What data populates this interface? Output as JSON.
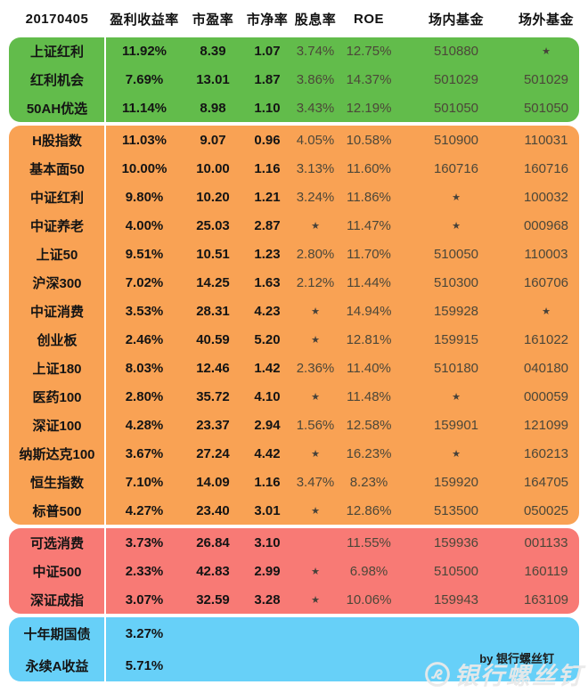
{
  "header": {
    "cells": [
      "20170405",
      "盈利收益率",
      "市盈率",
      "市净率",
      "股息率",
      "ROE",
      "场内基金",
      "场外基金"
    ]
  },
  "chart_data": {
    "type": "table",
    "title": "20170405",
    "columns": [
      "20170405",
      "盈利收益率",
      "市盈率",
      "市净率",
      "股息率",
      "ROE",
      "场内基金",
      "场外基金"
    ],
    "star_symbol": "★",
    "groups": [
      {
        "id": "green",
        "color": "#62BC4B",
        "rows": [
          [
            "上证红利",
            "11.92%",
            "8.39",
            "1.07",
            "3.74%",
            "12.75%",
            "510880",
            "★"
          ],
          [
            "红利机会",
            "7.69%",
            "13.01",
            "1.87",
            "3.86%",
            "14.37%",
            "501029",
            "501029"
          ],
          [
            "50AH优选",
            "11.14%",
            "8.98",
            "1.10",
            "3.43%",
            "12.19%",
            "501050",
            "501050"
          ]
        ]
      },
      {
        "id": "orange",
        "color": "#F9A254",
        "rows": [
          [
            "H股指数",
            "11.03%",
            "9.07",
            "0.96",
            "4.05%",
            "10.58%",
            "510900",
            "110031"
          ],
          [
            "基本面50",
            "10.00%",
            "10.00",
            "1.16",
            "3.13%",
            "11.60%",
            "160716",
            "160716"
          ],
          [
            "中证红利",
            "9.80%",
            "10.20",
            "1.21",
            "3.24%",
            "11.86%",
            "★",
            "100032"
          ],
          [
            "中证养老",
            "4.00%",
            "25.03",
            "2.87",
            "★",
            "11.47%",
            "★",
            "000968"
          ],
          [
            "上证50",
            "9.51%",
            "10.51",
            "1.23",
            "2.80%",
            "11.70%",
            "510050",
            "110003"
          ],
          [
            "沪深300",
            "7.02%",
            "14.25",
            "1.63",
            "2.12%",
            "11.44%",
            "510300",
            "160706"
          ],
          [
            "中证消费",
            "3.53%",
            "28.31",
            "4.23",
            "★",
            "14.94%",
            "159928",
            "★"
          ],
          [
            "创业板",
            "2.46%",
            "40.59",
            "5.20",
            "★",
            "12.81%",
            "159915",
            "161022"
          ],
          [
            "上证180",
            "8.03%",
            "12.46",
            "1.42",
            "2.36%",
            "11.40%",
            "510180",
            "040180"
          ],
          [
            "医药100",
            "2.80%",
            "35.72",
            "4.10",
            "★",
            "11.48%",
            "★",
            "000059"
          ],
          [
            "深证100",
            "4.28%",
            "23.37",
            "2.94",
            "1.56%",
            "12.58%",
            "159901",
            "121099"
          ],
          [
            "纳斯达克100",
            "3.67%",
            "27.24",
            "4.42",
            "★",
            "16.23%",
            "★",
            "160213"
          ],
          [
            "恒生指数",
            "7.10%",
            "14.09",
            "1.16",
            "3.47%",
            "8.23%",
            "159920",
            "164705"
          ],
          [
            "标普500",
            "4.27%",
            "23.40",
            "3.01",
            "★",
            "12.86%",
            "513500",
            "050025"
          ]
        ]
      },
      {
        "id": "red",
        "color": "#F87A75",
        "rows": [
          [
            "可选消费",
            "3.73%",
            "26.84",
            "3.10",
            "",
            "11.55%",
            "159936",
            "001133"
          ],
          [
            "中证500",
            "2.33%",
            "42.83",
            "2.99",
            "★",
            "6.98%",
            "510500",
            "160119"
          ],
          [
            "深证成指",
            "3.07%",
            "32.59",
            "3.28",
            "★",
            "10.06%",
            "159943",
            "163109"
          ]
        ]
      },
      {
        "id": "blue",
        "color": "#67D0F8",
        "rows": [
          [
            "十年期国债",
            "3.27%",
            "",
            "",
            "",
            "",
            "",
            ""
          ],
          [
            "永续A收益",
            "5.71%",
            "",
            "",
            "",
            "",
            "",
            ""
          ]
        ]
      }
    ]
  },
  "footer": {
    "byline": "by 银行螺丝钉",
    "watermark": {
      "icon": "screw-logo-icon",
      "text": "银行螺丝钉",
      "color": "#E9E9E9"
    }
  }
}
